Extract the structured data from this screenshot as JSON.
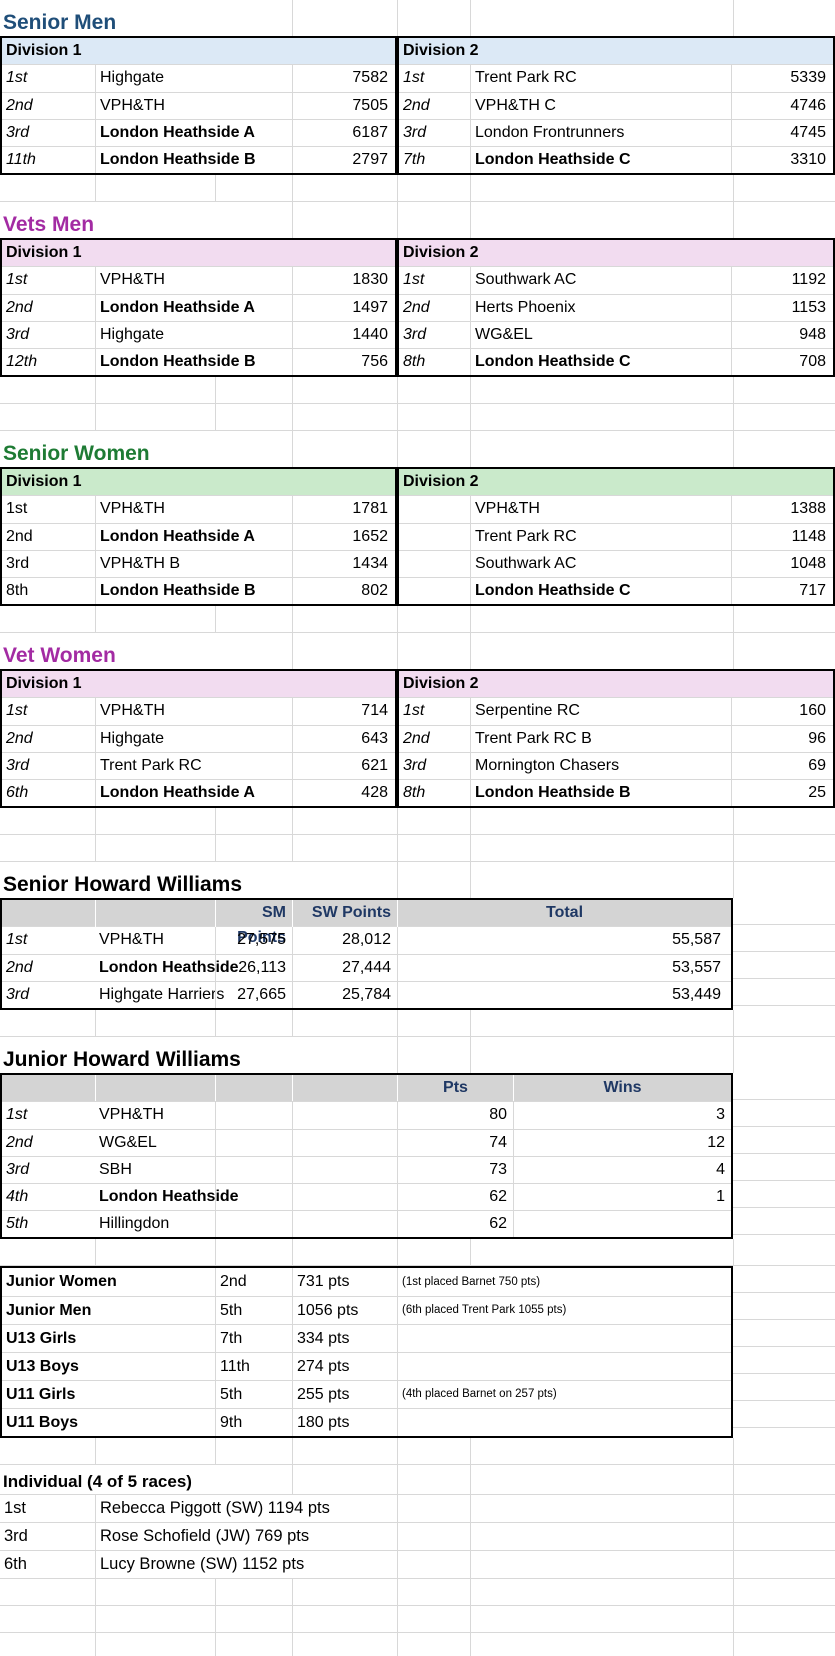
{
  "colors": {
    "title_blue": "#1F4E79",
    "title_purple": "#A32BA3",
    "title_green": "#1E7B34",
    "fill_blue": "#DCE9F6",
    "fill_pink": "#F2DCF0",
    "fill_green": "#CAEACB",
    "fill_gray": "#D4D4D4",
    "header_navy": "#1F3864",
    "gridline": "#D8D8D8"
  },
  "divisions": [
    {
      "title": "Senior Men",
      "skin": "blue",
      "pos_style": "i",
      "gap": "1",
      "tables": [
        {
          "header": "Division 1",
          "rows": [
            {
              "pos": "1st",
              "club": "Highgate",
              "score": "7582",
              "w": "n"
            },
            {
              "pos": "2nd",
              "club": "VPH&TH",
              "score": "7505",
              "w": "n"
            },
            {
              "pos": "3rd",
              "club": "London Heathside A",
              "score": "6187",
              "w": "b"
            },
            {
              "pos": "11th",
              "club": "London Heathside B",
              "score": "2797",
              "w": "b"
            }
          ]
        },
        {
          "header": "Division 2",
          "rows": [
            {
              "pos": "1st",
              "club": "Trent Park RC",
              "score": "5339",
              "w": "n"
            },
            {
              "pos": "2nd",
              "club": "VPH&TH C",
              "score": "4746",
              "w": "n"
            },
            {
              "pos": "3rd",
              "club": "London Frontrunners",
              "score": "4745",
              "w": "n"
            },
            {
              "pos": "7th",
              "club": "London Heathside C",
              "score": "3310",
              "w": "b"
            }
          ]
        }
      ]
    },
    {
      "title": "Vets Men",
      "skin": "pink",
      "pos_style": "i",
      "gap": "2",
      "tables": [
        {
          "header": "Division 1",
          "rows": [
            {
              "pos": "1st",
              "club": "VPH&TH",
              "score": "1830",
              "w": "n"
            },
            {
              "pos": "2nd",
              "club": "London Heathside A",
              "score": "1497",
              "w": "b"
            },
            {
              "pos": "3rd",
              "club": "Highgate",
              "score": "1440",
              "w": "n"
            },
            {
              "pos": "12th",
              "club": "London Heathside B",
              "score": "756",
              "w": "b"
            }
          ]
        },
        {
          "header": "Division 2",
          "rows": [
            {
              "pos": "1st",
              "club": "Southwark AC",
              "score": "1192",
              "w": "n"
            },
            {
              "pos": "2nd",
              "club": "Herts Phoenix",
              "score": "1153",
              "w": "n"
            },
            {
              "pos": "3rd",
              "club": "WG&EL",
              "score": "948",
              "w": "n"
            },
            {
              "pos": "8th",
              "club": "London Heathside C",
              "score": "708",
              "w": "b"
            }
          ]
        }
      ]
    },
    {
      "title": "Senior Women",
      "skin": "green",
      "pos_style": "n",
      "gap": "1",
      "tables": [
        {
          "header": "Division 1",
          "rows": [
            {
              "pos": "1st",
              "club": "VPH&TH",
              "score": "1781",
              "w": "n"
            },
            {
              "pos": "2nd",
              "club": "London Heathside A",
              "score": "1652",
              "w": "b"
            },
            {
              "pos": "3rd",
              "club": "VPH&TH B",
              "score": "1434",
              "w": "n"
            },
            {
              "pos": "8th",
              "club": "London Heathside B",
              "score": "802",
              "w": "b"
            }
          ]
        },
        {
          "header": "Division 2",
          "rows": [
            {
              "pos": "",
              "club": "VPH&TH",
              "score": "1388",
              "w": "n"
            },
            {
              "pos": "",
              "club": "Trent Park RC",
              "score": "1148",
              "w": "n"
            },
            {
              "pos": "",
              "club": "Southwark AC",
              "score": "1048",
              "w": "n"
            },
            {
              "pos": "",
              "club": "London Heathside C",
              "score": "717",
              "w": "b"
            }
          ]
        }
      ]
    },
    {
      "title": "Vet Women",
      "skin": "pink",
      "pos_style": "i",
      "gap": "2",
      "tables": [
        {
          "header": "Division 1",
          "rows": [
            {
              "pos": "1st",
              "club": "VPH&TH",
              "score": "714",
              "w": "n"
            },
            {
              "pos": "2nd",
              "club": "Highgate",
              "score": "643",
              "w": "n"
            },
            {
              "pos": "3rd",
              "club": "Trent Park RC",
              "score": "621",
              "w": "n"
            },
            {
              "pos": "6th",
              "club": "London Heathside A",
              "score": "428",
              "w": "b"
            }
          ]
        },
        {
          "header": "Division 2",
          "rows": [
            {
              "pos": "1st",
              "club": "Serpentine RC",
              "score": "160",
              "w": "n"
            },
            {
              "pos": "2nd",
              "club": "Trent Park RC B",
              "score": "96",
              "w": "n"
            },
            {
              "pos": "3rd",
              "club": "Mornington Chasers",
              "score": "69",
              "w": "n"
            },
            {
              "pos": "8th",
              "club": "London Heathside B",
              "score": "25",
              "w": "b"
            }
          ]
        }
      ]
    }
  ],
  "senior_hw": {
    "title": "Senior Howard Williams",
    "col_sm": "SM Points",
    "col_sw": "SW Points",
    "col_total": "Total",
    "rows": [
      {
        "pos": "1st",
        "club": "VPH&TH",
        "sm": "27,575",
        "sw": "28,012",
        "total": "55,587",
        "w": "n"
      },
      {
        "pos": "2nd",
        "club": "London Heathside",
        "sm": "26,113",
        "sw": "27,444",
        "total": "53,557",
        "w": "b"
      },
      {
        "pos": "3rd",
        "club": "Highgate Harriers",
        "sm": "27,665",
        "sw": "25,784",
        "total": "53,449",
        "w": "n"
      }
    ]
  },
  "junior_hw": {
    "title": "Junior Howard Williams",
    "col_pts": "Pts",
    "col_wins": "Wins",
    "rows": [
      {
        "pos": "1st",
        "club": "VPH&TH",
        "pts": "80",
        "wins": "3",
        "w": "n"
      },
      {
        "pos": "2nd",
        "club": "WG&EL",
        "pts": "74",
        "wins": "12",
        "w": "n"
      },
      {
        "pos": "3rd",
        "club": "SBH",
        "pts": "73",
        "wins": "4",
        "w": "n"
      },
      {
        "pos": "4th",
        "club": "London Heathside",
        "pts": "62",
        "wins": "1",
        "w": "b"
      },
      {
        "pos": "5th",
        "club": "Hillingdon",
        "pts": "62",
        "wins": "",
        "w": "n"
      }
    ]
  },
  "junior_block": {
    "rows": [
      {
        "label": "Junior Women",
        "pos": "2nd",
        "pts": "731 pts",
        "note": "(1st placed Barnet 750 pts)"
      },
      {
        "label": "Junior Men",
        "pos": "5th",
        "pts": "1056 pts",
        "note": "(6th placed Trent Park 1055 pts)"
      },
      {
        "label": "U13 Girls",
        "pos": "7th",
        "pts": "334 pts",
        "note": ""
      },
      {
        "label": "U13 Boys",
        "pos": "11th",
        "pts": "274 pts",
        "note": ""
      },
      {
        "label": "U11 Girls",
        "pos": "5th",
        "pts": "255 pts",
        "note": "(4th placed Barnet on 257 pts)"
      },
      {
        "label": "U11 Boys",
        "pos": "9th",
        "pts": "180 pts",
        "note": ""
      }
    ]
  },
  "individual": {
    "title": "Individual (4 of 5 races)",
    "rows": [
      {
        "pos": "1st",
        "name": "Rebecca Piggott (SW) 1194 pts"
      },
      {
        "pos": "3rd",
        "name": "Rose Schofield (JW) 769 pts"
      },
      {
        "pos": "6th",
        "name": "Lucy Browne (SW) 1152 pts"
      }
    ]
  }
}
